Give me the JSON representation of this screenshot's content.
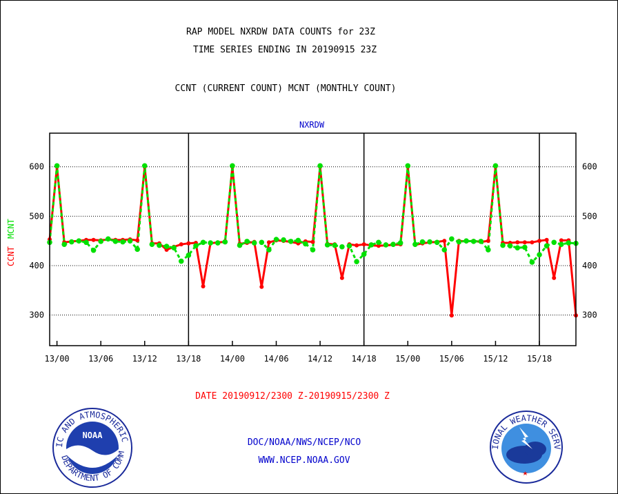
{
  "header": {
    "title_line1": "RAP MODEL NXRDW DATA COUNTS for 23Z",
    "title_line2": "TIME SERIES ENDING IN 20190915 23Z",
    "subtitle": "CCNT (CURRENT COUNT) MCNT (MONTHLY COUNT)"
  },
  "footer": {
    "date_range": "DATE 20190912/2300 Z-20190915/2300 Z",
    "org_line": "DOC/NOAA/NWS/NCEP/NCO",
    "url_line": "WWW.NCEP.NOAA.GOV"
  },
  "logos": {
    "noaa_label": "NOAA",
    "noaa_ring_text": "NATIONAL OCEANIC AND ATMOSPHERIC ADMINISTRATION",
    "noaa_ring_text_bottom": "U.S. DEPARTMENT OF COMMERCE",
    "nws_ring_text": "NATIONAL WEATHER SERVICE"
  },
  "colors": {
    "ccnt": "#ff0000",
    "mcnt": "#00e000",
    "axis": "#000000",
    "text_blue": "#0000cc",
    "text_red": "#ff0000"
  },
  "chart_data": {
    "type": "line",
    "title": "NXRDW",
    "ylabel_ccnt": "CCNT",
    "ylabel_mcnt": "MCNT",
    "ylim": [
      238,
      668
    ],
    "yticks": [
      300,
      400,
      500,
      600
    ],
    "xlim": [
      -1,
      71
    ],
    "xticks": [
      {
        "x": 0,
        "label": "13/00"
      },
      {
        "x": 6,
        "label": "13/06"
      },
      {
        "x": 12,
        "label": "13/12"
      },
      {
        "x": 18,
        "label": "13/18"
      },
      {
        "x": 24,
        "label": "14/00"
      },
      {
        "x": 30,
        "label": "14/06"
      },
      {
        "x": 36,
        "label": "14/12"
      },
      {
        "x": 42,
        "label": "14/18"
      },
      {
        "x": 48,
        "label": "15/00"
      },
      {
        "x": 54,
        "label": "15/06"
      },
      {
        "x": 60,
        "label": "15/12"
      },
      {
        "x": 66,
        "label": "15/18"
      }
    ],
    "day_boundaries": [
      18,
      42,
      66
    ],
    "grid": "horizontal dotted",
    "series": [
      {
        "name": "CCNT",
        "x": [
          -1,
          0,
          1,
          2,
          3,
          4,
          5,
          6,
          7,
          8,
          9,
          10,
          11,
          12,
          13,
          14,
          15,
          16,
          17,
          18,
          19,
          20,
          21,
          22,
          23,
          24,
          25,
          26,
          27,
          28,
          29,
          30,
          31,
          32,
          33,
          34,
          35,
          36,
          37,
          38,
          39,
          40,
          41,
          42,
          43,
          44,
          45,
          46,
          47,
          48,
          49,
          50,
          51,
          52,
          53,
          54,
          55,
          56,
          57,
          58,
          59,
          60,
          61,
          62,
          63,
          64,
          65,
          66,
          67,
          68,
          69,
          70,
          71
        ],
        "values": [
          453,
          600,
          447,
          449,
          450,
          452,
          452,
          451,
          453,
          452,
          452,
          453,
          451,
          600,
          445,
          445,
          432,
          438,
          443,
          445,
          446,
          358,
          445,
          447,
          448,
          600,
          444,
          446,
          448,
          357,
          447,
          451,
          450,
          448,
          445,
          449,
          448,
          600,
          444,
          443,
          375,
          443,
          441,
          443,
          441,
          440,
          441,
          442,
          443,
          600,
          442,
          445,
          447,
          448,
          450,
          299,
          450,
          449,
          450,
          448,
          450,
          600,
          446,
          446,
          447,
          447,
          447,
          450,
          452,
          375,
          451,
          451,
          299
        ]
      },
      {
        "name": "MCNT",
        "x": [
          -1,
          0,
          1,
          2,
          3,
          4,
          5,
          6,
          7,
          8,
          9,
          10,
          11,
          12,
          13,
          14,
          15,
          16,
          17,
          18,
          19,
          20,
          21,
          22,
          23,
          24,
          25,
          26,
          27,
          28,
          29,
          30,
          31,
          32,
          33,
          34,
          35,
          36,
          37,
          38,
          39,
          40,
          41,
          42,
          43,
          44,
          45,
          46,
          47,
          48,
          49,
          50,
          51,
          52,
          53,
          54,
          55,
          56,
          57,
          58,
          59,
          60,
          61,
          62,
          63,
          64,
          65,
          66,
          67,
          68,
          69,
          70,
          71
        ],
        "values": [
          447,
          602,
          443,
          448,
          450,
          447,
          431,
          449,
          454,
          449,
          448,
          450,
          433,
          602,
          443,
          441,
          439,
          436,
          409,
          421,
          440,
          447,
          446,
          446,
          448,
          602,
          441,
          449,
          446,
          447,
          432,
          453,
          452,
          449,
          451,
          444,
          432,
          602,
          442,
          441,
          438,
          440,
          408,
          423,
          442,
          447,
          442,
          443,
          446,
          602,
          443,
          448,
          448,
          447,
          432,
          454,
          448,
          450,
          449,
          449,
          432,
          602,
          441,
          440,
          436,
          437,
          407,
          422,
          440,
          447,
          443,
          446,
          445
        ]
      }
    ]
  }
}
